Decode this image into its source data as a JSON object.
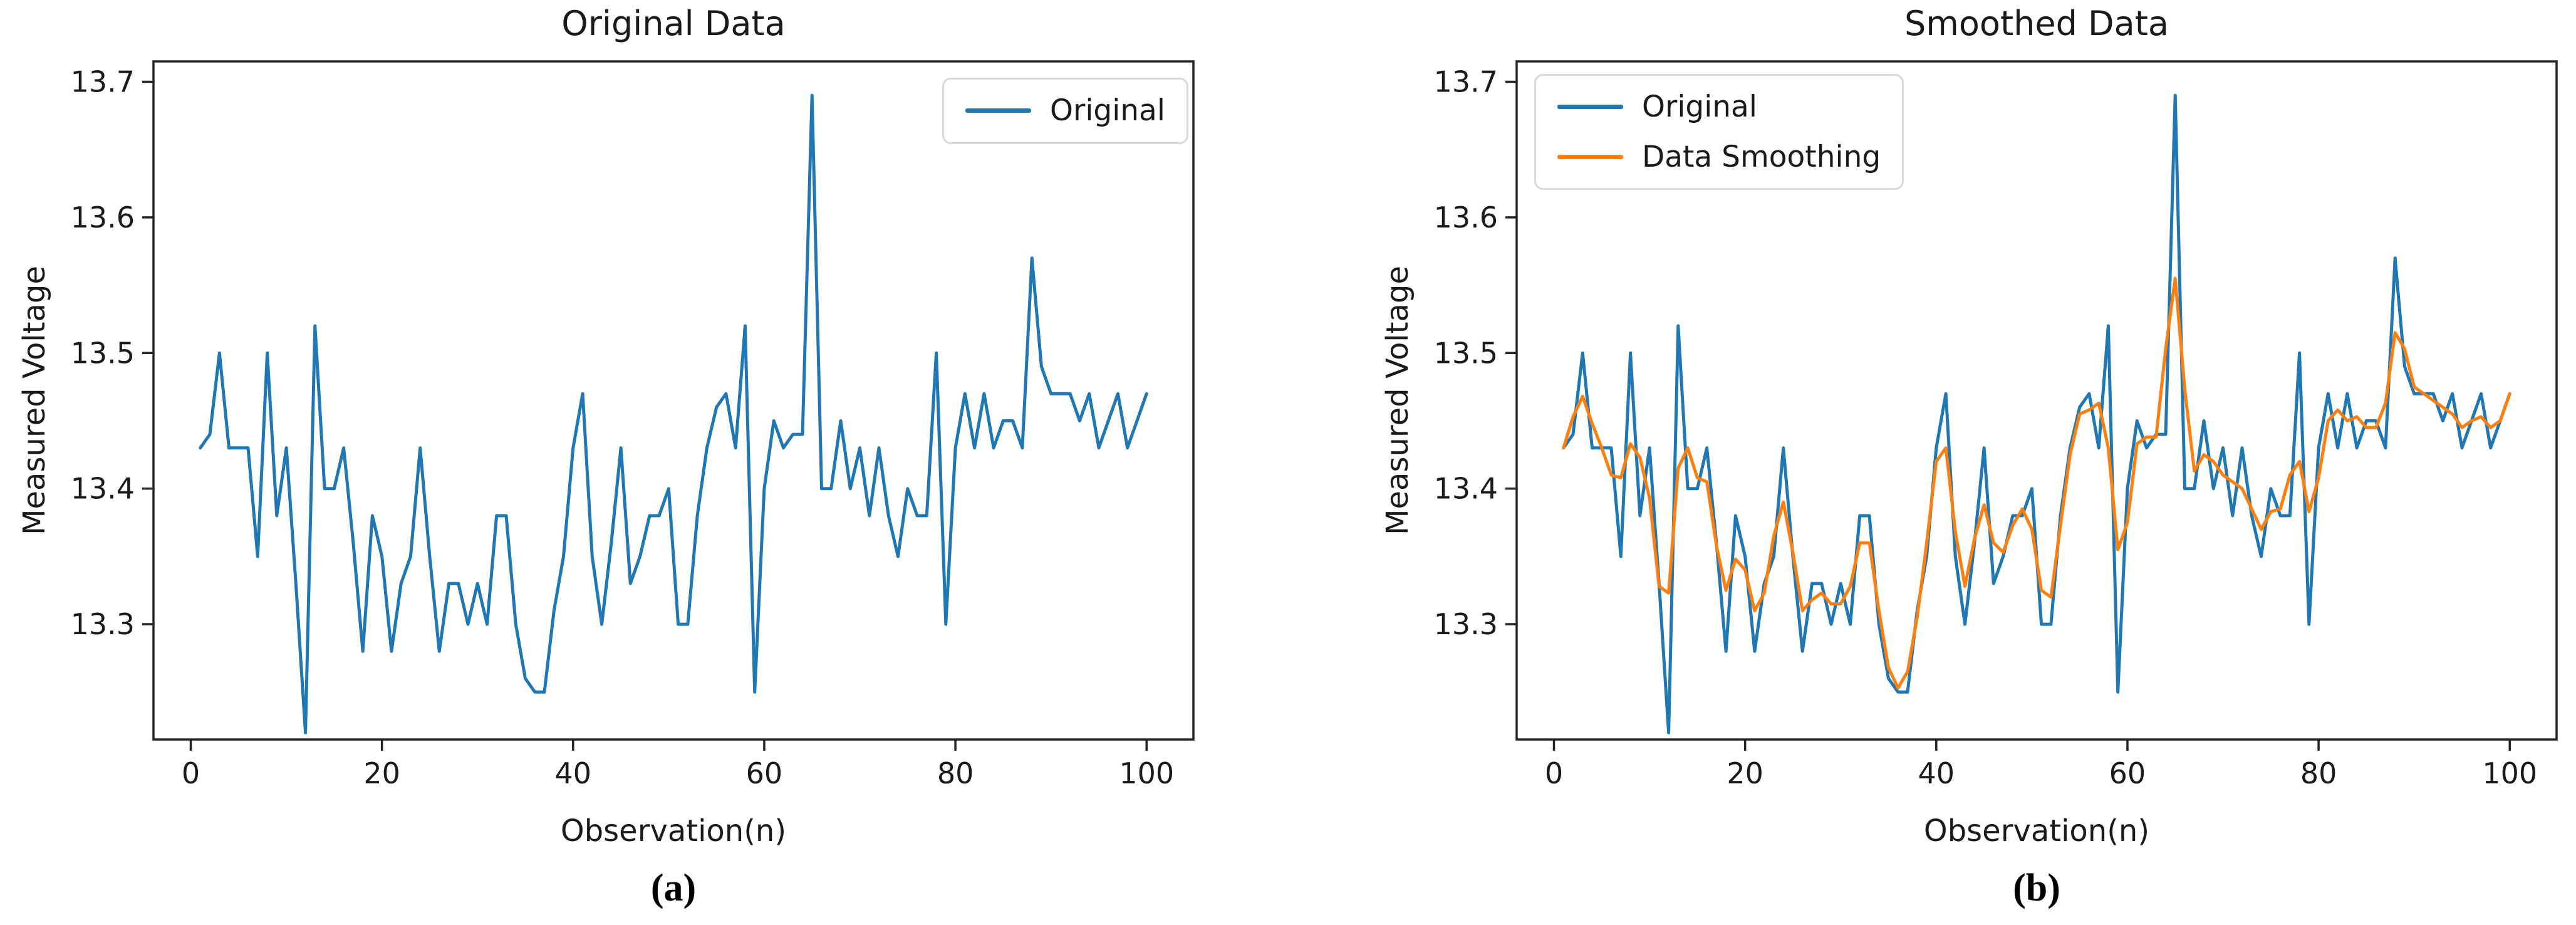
{
  "colors": {
    "original_line": "#1f77b4",
    "smoothed_line": "#ff7f0e",
    "spine": "#262626",
    "tick_text": "#1a1a1a",
    "legend_border": "#d9d9d9",
    "background": "#ffffff"
  },
  "chart_data": [
    {
      "type": "line",
      "title": "Original Data",
      "xlabel": "Observation(n)",
      "ylabel": "Measured Voltage",
      "caption": "(a)",
      "grid": false,
      "legend_position": "top-right",
      "xlim": [
        -3.9,
        104.9
      ],
      "ylim": [
        13.215,
        13.715
      ],
      "xticks": [
        0,
        20,
        40,
        60,
        80,
        100
      ],
      "xtick_labels": [
        "0",
        "20",
        "40",
        "60",
        "80",
        "100"
      ],
      "yticks": [
        13.3,
        13.4,
        13.5,
        13.6,
        13.7
      ],
      "ytick_labels": [
        "13.3",
        "13.4",
        "13.5",
        "13.6",
        "13.7"
      ],
      "x": {
        "start": 1,
        "step": 1,
        "count": 100
      },
      "series": [
        {
          "name": "Original",
          "color": "#1f77b4",
          "values": [
            13.43,
            13.44,
            13.5,
            13.43,
            13.43,
            13.43,
            13.35,
            13.5,
            13.38,
            13.43,
            13.33,
            13.22,
            13.52,
            13.4,
            13.4,
            13.43,
            13.36,
            13.28,
            13.38,
            13.35,
            13.28,
            13.33,
            13.35,
            13.43,
            13.35,
            13.28,
            13.33,
            13.33,
            13.3,
            13.33,
            13.3,
            13.38,
            13.38,
            13.3,
            13.26,
            13.25,
            13.25,
            13.31,
            13.35,
            13.43,
            13.47,
            13.35,
            13.3,
            13.36,
            13.43,
            13.33,
            13.35,
            13.38,
            13.38,
            13.4,
            13.3,
            13.3,
            13.38,
            13.43,
            13.46,
            13.47,
            13.43,
            13.52,
            13.25,
            13.4,
            13.45,
            13.43,
            13.44,
            13.44,
            13.69,
            13.4,
            13.4,
            13.45,
            13.4,
            13.43,
            13.38,
            13.43,
            13.38,
            13.35,
            13.4,
            13.38,
            13.38,
            13.5,
            13.3,
            13.43,
            13.47,
            13.43,
            13.47,
            13.43,
            13.45,
            13.45,
            13.43,
            13.57,
            13.49,
            13.47,
            13.47,
            13.47,
            13.45,
            13.47,
            13.43,
            13.45,
            13.47,
            13.43,
            13.45,
            13.47
          ]
        }
      ]
    },
    {
      "type": "line",
      "title": "Smoothed Data",
      "xlabel": "Observation(n)",
      "ylabel": "Measured Voltage",
      "caption": "(b)",
      "grid": false,
      "legend_position": "top-left",
      "xlim": [
        -3.9,
        104.9
      ],
      "ylim": [
        13.215,
        13.715
      ],
      "xticks": [
        0,
        20,
        40,
        60,
        80,
        100
      ],
      "xtick_labels": [
        "0",
        "20",
        "40",
        "60",
        "80",
        "100"
      ],
      "yticks": [
        13.3,
        13.4,
        13.5,
        13.6,
        13.7
      ],
      "ytick_labels": [
        "13.3",
        "13.4",
        "13.5",
        "13.6",
        "13.7"
      ],
      "x": {
        "start": 1,
        "step": 1,
        "count": 100
      },
      "series": [
        {
          "name": "Original",
          "color": "#1f77b4",
          "values": [
            13.43,
            13.44,
            13.5,
            13.43,
            13.43,
            13.43,
            13.35,
            13.5,
            13.38,
            13.43,
            13.33,
            13.22,
            13.52,
            13.4,
            13.4,
            13.43,
            13.36,
            13.28,
            13.38,
            13.35,
            13.28,
            13.33,
            13.35,
            13.43,
            13.35,
            13.28,
            13.33,
            13.33,
            13.3,
            13.33,
            13.3,
            13.38,
            13.38,
            13.3,
            13.26,
            13.25,
            13.25,
            13.31,
            13.35,
            13.43,
            13.47,
            13.35,
            13.3,
            13.36,
            13.43,
            13.33,
            13.35,
            13.38,
            13.38,
            13.4,
            13.3,
            13.3,
            13.38,
            13.43,
            13.46,
            13.47,
            13.43,
            13.52,
            13.25,
            13.4,
            13.45,
            13.43,
            13.44,
            13.44,
            13.69,
            13.4,
            13.4,
            13.45,
            13.4,
            13.43,
            13.38,
            13.43,
            13.38,
            13.35,
            13.4,
            13.38,
            13.38,
            13.5,
            13.3,
            13.43,
            13.47,
            13.43,
            13.47,
            13.43,
            13.45,
            13.45,
            13.43,
            13.57,
            13.49,
            13.47,
            13.47,
            13.47,
            13.45,
            13.47,
            13.43,
            13.45,
            13.47,
            13.43,
            13.45,
            13.47
          ]
        },
        {
          "name": "Data Smoothing",
          "color": "#ff7f0e",
          "values": [
            13.43,
            13.453,
            13.468,
            13.448,
            13.43,
            13.41,
            13.408,
            13.433,
            13.423,
            13.393,
            13.328,
            13.323,
            13.415,
            13.43,
            13.408,
            13.405,
            13.358,
            13.325,
            13.348,
            13.34,
            13.31,
            13.323,
            13.365,
            13.39,
            13.353,
            13.31,
            13.318,
            13.323,
            13.315,
            13.315,
            13.328,
            13.36,
            13.36,
            13.31,
            13.268,
            13.253,
            13.265,
            13.305,
            13.36,
            13.42,
            13.43,
            13.368,
            13.328,
            13.363,
            13.388,
            13.36,
            13.353,
            13.373,
            13.385,
            13.37,
            13.325,
            13.32,
            13.373,
            13.425,
            13.455,
            13.458,
            13.463,
            13.43,
            13.355,
            13.375,
            13.433,
            13.438,
            13.438,
            13.503,
            13.555,
            13.473,
            13.413,
            13.425,
            13.42,
            13.41,
            13.405,
            13.4,
            13.385,
            13.37,
            13.383,
            13.385,
            13.41,
            13.42,
            13.383,
            13.408,
            13.45,
            13.458,
            13.45,
            13.453,
            13.445,
            13.445,
            13.463,
            13.515,
            13.503,
            13.475,
            13.47,
            13.465,
            13.46,
            13.455,
            13.445,
            13.45,
            13.453,
            13.445,
            13.45,
            13.47
          ]
        }
      ]
    }
  ]
}
